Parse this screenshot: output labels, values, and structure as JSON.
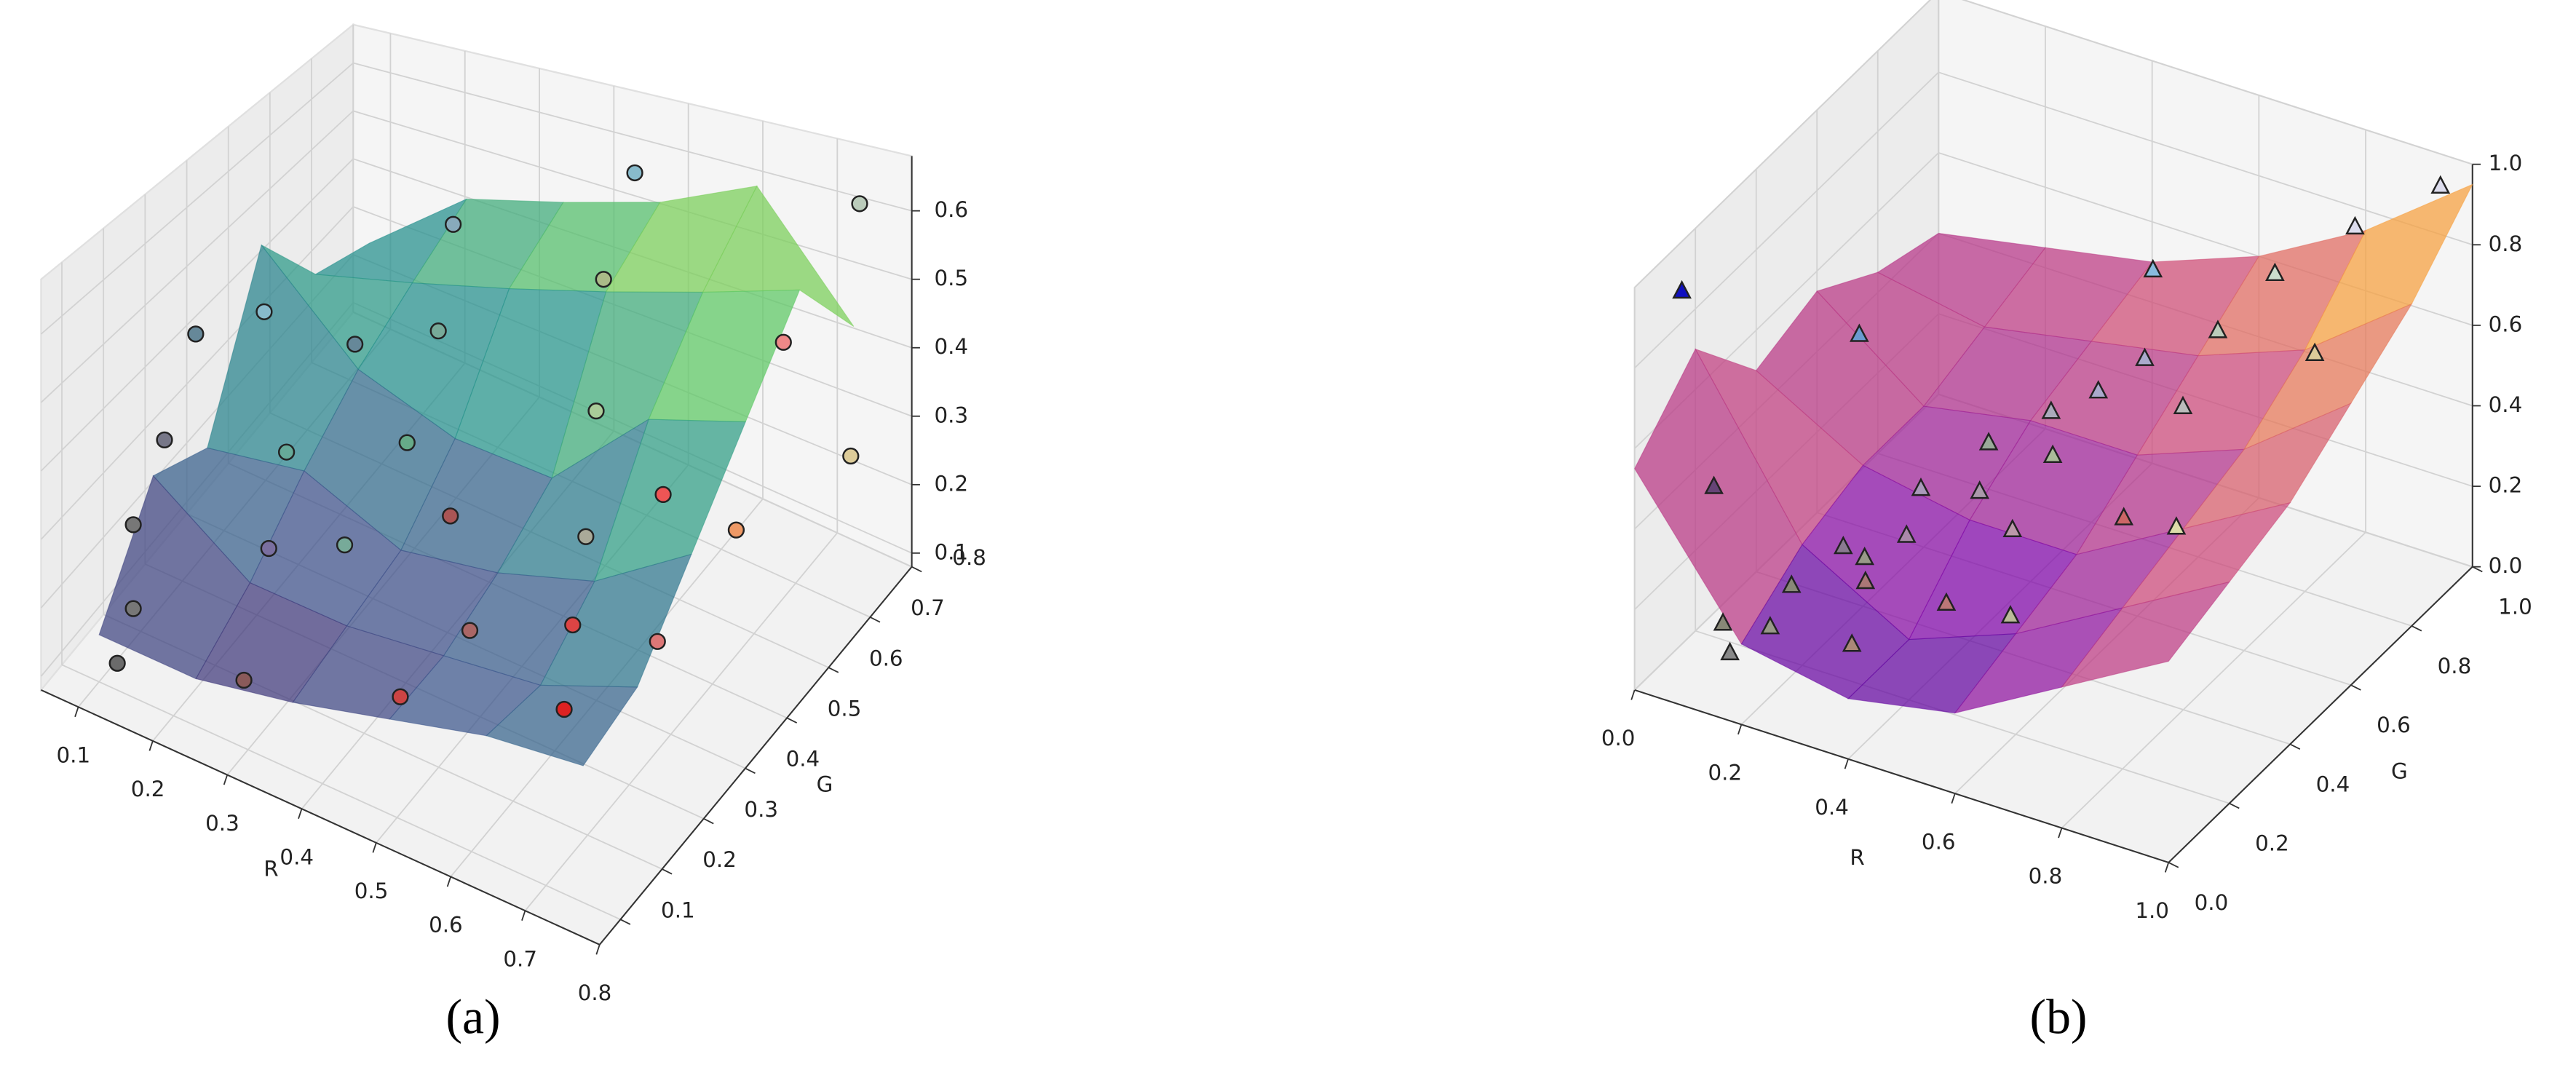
{
  "chart_data": [
    {
      "type": "scatter3d",
      "label": "(a)",
      "xlabel": "R",
      "ylabel": "G",
      "xlim": [
        0.05,
        0.8
      ],
      "ylim": [
        0.05,
        0.8
      ],
      "zlim": [
        0.08,
        0.68
      ],
      "xticks": [
        0.1,
        0.2,
        0.3,
        0.4,
        0.5,
        0.6,
        0.7,
        0.8
      ],
      "yticks": [
        0.1,
        0.2,
        0.3,
        0.4,
        0.5,
        0.6,
        0.7,
        0.8
      ],
      "zticks": [
        0.1,
        0.2,
        0.3,
        0.4,
        0.5,
        0.6
      ],
      "marker": "circle",
      "colormap": "viridis",
      "points": {
        "x": [
          0.13,
          0.3,
          0.51,
          0.73,
          0.09,
          0.5,
          0.68,
          0.71,
          0.09,
          0.23,
          0.29,
          0.39,
          0.53,
          0.69,
          0.09,
          0.17,
          0.29,
          0.55,
          0.76,
          0.09,
          0.14,
          0.22,
          0.29,
          0.46,
          0.31,
          0.47,
          0.47,
          0.65,
          0.73
        ],
        "y": [
          0.09,
          0.09,
          0.09,
          0.09,
          0.2,
          0.275,
          0.2,
          0.35,
          0.2,
          0.275,
          0.35,
          0.425,
          0.5,
          0.575,
          0.275,
          0.425,
          0.5,
          0.65,
          0.725,
          0.35,
          0.425,
          0.5,
          0.575,
          0.65,
          0.575,
          0.65,
          0.725,
          0.76,
          0.8
        ],
        "z": [
          0.13,
          0.19,
          0.27,
          0.36,
          0.11,
          0.23,
          0.38,
          0.26,
          0.24,
          0.22,
          0.2,
          0.24,
          0.22,
          0.25,
          0.32,
          0.23,
          0.25,
          0.18,
          0.28,
          0.44,
          0.45,
          0.38,
          0.38,
          0.27,
          0.57,
          0.49,
          0.61,
          0.38,
          0.59
        ],
        "colors": [
          "#6b6b6b",
          "#8a5a5a",
          "#cc4444",
          "#dd2222",
          "#777777",
          "#aa6666",
          "#dd4444",
          "#dd7777",
          "#777777",
          "#7a6fa0",
          "#77aa99",
          "#aa5555",
          "#aaaa99",
          "#ee9966",
          "#777788",
          "#66aa99",
          "#66aa88",
          "#ee5555",
          "#ddcc99",
          "#668899",
          "#88bbcc",
          "#668899",
          "#77aa99",
          "#aacc99",
          "#88aabb",
          "#aabb88",
          "#88bbcc",
          "#ee8888",
          "#bbccbb"
        ]
      },
      "surface": {
        "x": [
          0.1,
          0.23,
          0.36,
          0.49,
          0.62,
          0.75
        ],
        "y": [
          0.1,
          0.23,
          0.36,
          0.49,
          0.62,
          0.75
        ],
        "z": [
          [
            0.15,
            0.15,
            0.18,
            0.22,
            0.26,
            0.28
          ],
          [
            0.3,
            0.2,
            0.2,
            0.22,
            0.24,
            0.3
          ],
          [
            0.25,
            0.28,
            0.22,
            0.25,
            0.3,
            0.4
          ],
          [
            0.5,
            0.35,
            0.3,
            0.3,
            0.45,
            0.5
          ],
          [
            0.35,
            0.4,
            0.45,
            0.5,
            0.55,
            0.6
          ],
          [
            0.3,
            0.45,
            0.5,
            0.55,
            0.62,
            0.45
          ]
        ]
      }
    },
    {
      "type": "scatter3d",
      "label": "(b)",
      "xlabel": "R",
      "ylabel": "G",
      "xlim": [
        0,
        1
      ],
      "ylim": [
        0,
        1
      ],
      "zlim": [
        0,
        1
      ],
      "xticks": [
        {
          "value": 0,
          "label": "0.0"
        },
        0.2,
        0.4,
        0.6,
        0.8,
        {
          "value": 1,
          "label": "1.0"
        }
      ],
      "yticks": [
        {
          "value": 0,
          "label": "0.0"
        },
        0.2,
        0.4,
        0.6,
        0.8,
        {
          "value": 1,
          "label": "1.0"
        }
      ],
      "zticks": [
        {
          "value": 0,
          "label": "0.0"
        },
        0.2,
        0.4,
        0.6,
        0.8,
        {
          "value": 1,
          "label": "1.0"
        }
      ],
      "marker": "triangle",
      "colormap": "plasma",
      "points": {
        "x": [
          0.06,
          0.25,
          0.12,
          0.15,
          0.08,
          0.14,
          0.18,
          0.22,
          0.35,
          0.29,
          0.26,
          0.31,
          0.28,
          0.47,
          0.39,
          0.35,
          0.48,
          0.59,
          0.41,
          0.47,
          0.47,
          0.66,
          0.5,
          0.43,
          0.73,
          0.6,
          0.58,
          0.63,
          0.79,
          0.78,
          0.94
        ],
        "y": [
          0.05,
          0.3,
          0.05,
          0.05,
          0.15,
          0.2,
          0.2,
          0.3,
          0.1,
          0.25,
          0.3,
          0.35,
          0.45,
          0.2,
          0.45,
          0.55,
          0.4,
          0.2,
          0.65,
          0.55,
          0.7,
          0.45,
          0.8,
          0.95,
          0.5,
          0.75,
          0.9,
          1,
          0.85,
          1,
          1
        ],
        "z": [
          0.98,
          0.77,
          0.52,
          0.12,
          0.09,
          0.07,
          0.19,
          0.23,
          0.19,
          0.21,
          0.22,
          0.26,
          0.29,
          0.27,
          0.33,
          0.36,
          0.31,
          0.29,
          0.39,
          0.38,
          0.43,
          0.38,
          0.45,
          0.53,
          0.35,
          0.41,
          0.48,
          0.57,
          0.55,
          0.75,
          0.92
        ],
        "colors": [
          "#1010c0",
          "#6a9bd0",
          "#664477",
          "#888888",
          "#888877",
          "#999988",
          "#888877",
          "#8a7a90",
          "#aa8877",
          "#aa7777",
          "#999988",
          "#aa88aa",
          "#aa99bb",
          "#bb7777",
          "#aa99aa",
          "#99aa99",
          "#bb99aa",
          "#bbbb99",
          "#aaaabb",
          "#aabb99",
          "#aaaacc",
          "#cc6666",
          "#aaaacc",
          "#88bbdd",
          "#ddddaa",
          "#bbbbbb",
          "#bbccbb",
          "#ccddcc",
          "#ddcc99",
          "#ddddee",
          "#ddddee"
        ]
      },
      "surface": {
        "x": [
          0,
          0.2,
          0.4,
          0.6,
          0.8,
          1
        ],
        "y": [
          0,
          0.2,
          0.4,
          0.6,
          0.8,
          1
        ],
        "z": [
          [
            0.55,
            0.2,
            0.15,
            0.2,
            0.35,
            0.5
          ],
          [
            0.7,
            0.3,
            0.15,
            0.25,
            0.4,
            0.55
          ],
          [
            0.5,
            0.35,
            0.3,
            0.3,
            0.45,
            0.6
          ],
          [
            0.55,
            0.35,
            0.4,
            0.4,
            0.5,
            0.7
          ],
          [
            0.45,
            0.4,
            0.45,
            0.5,
            0.6,
            0.8
          ],
          [
            0.4,
            0.45,
            0.5,
            0.6,
            0.75,
            0.95
          ]
        ]
      }
    }
  ]
}
